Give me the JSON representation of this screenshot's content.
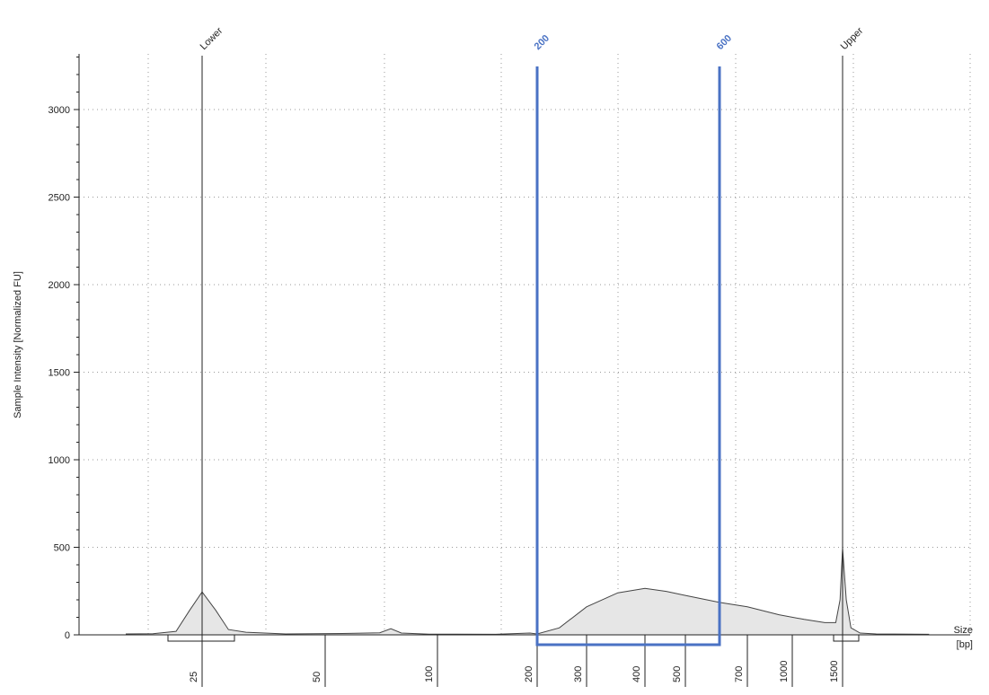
{
  "chart_data": {
    "type": "area",
    "title": "",
    "ylabel": "Sample Intensity [Normalized FU]",
    "xlabel": "Size\n[bp]",
    "xlabel_lines": [
      "Size",
      "[bp]"
    ],
    "ylim": [
      0,
      3300
    ],
    "yticks": [
      0,
      500,
      1000,
      1500,
      2000,
      2500,
      3000
    ],
    "x_scale": "electrophoretic (non-linear bp)",
    "x_tick_labels": [
      "25",
      "50",
      "100",
      "200",
      "300",
      "400",
      "500",
      "700",
      "1000",
      "1500"
    ],
    "grid": true,
    "markers": [
      {
        "label": "Lower",
        "x_bp": 25,
        "peak_height": 245
      },
      {
        "label": "Upper",
        "x_bp": 1500,
        "peak_height": 495
      }
    ],
    "region": {
      "start_label": "200",
      "end_label": "600",
      "start_bp": 200,
      "end_bp": 600,
      "color": "#4a72c4"
    },
    "trace_color": "#444444",
    "fill_color": "#e6e6e6",
    "series": [
      {
        "values": [
          {
            "bp": 15,
            "y": 5
          },
          {
            "bp": 18,
            "y": 6
          },
          {
            "bp": 21,
            "y": 20
          },
          {
            "bp": 23,
            "y": 140
          },
          {
            "bp": 25,
            "y": 245
          },
          {
            "bp": 27,
            "y": 140
          },
          {
            "bp": 29,
            "y": 30
          },
          {
            "bp": 32,
            "y": 15
          },
          {
            "bp": 40,
            "y": 5
          },
          {
            "bp": 58,
            "y": 8
          },
          {
            "bp": 70,
            "y": 12
          },
          {
            "bp": 75,
            "y": 35
          },
          {
            "bp": 80,
            "y": 10
          },
          {
            "bp": 95,
            "y": 4
          },
          {
            "bp": 150,
            "y": 3
          },
          {
            "bp": 190,
            "y": 10
          },
          {
            "bp": 200,
            "y": 5
          },
          {
            "bp": 240,
            "y": 40
          },
          {
            "bp": 300,
            "y": 160
          },
          {
            "bp": 350,
            "y": 240
          },
          {
            "bp": 400,
            "y": 265
          },
          {
            "bp": 450,
            "y": 248
          },
          {
            "bp": 500,
            "y": 225
          },
          {
            "bp": 600,
            "y": 185
          },
          {
            "bp": 700,
            "y": 160
          },
          {
            "bp": 900,
            "y": 115
          },
          {
            "bp": 1100,
            "y": 88
          },
          {
            "bp": 1300,
            "y": 70
          },
          {
            "bp": 1420,
            "y": 70
          },
          {
            "bp": 1470,
            "y": 200
          },
          {
            "bp": 1500,
            "y": 495
          },
          {
            "bp": 1530,
            "y": 200
          },
          {
            "bp": 1570,
            "y": 40
          },
          {
            "bp": 1650,
            "y": 10
          },
          {
            "bp": 1800,
            "y": 5
          },
          {
            "bp": 2400,
            "y": 3
          }
        ]
      }
    ]
  }
}
